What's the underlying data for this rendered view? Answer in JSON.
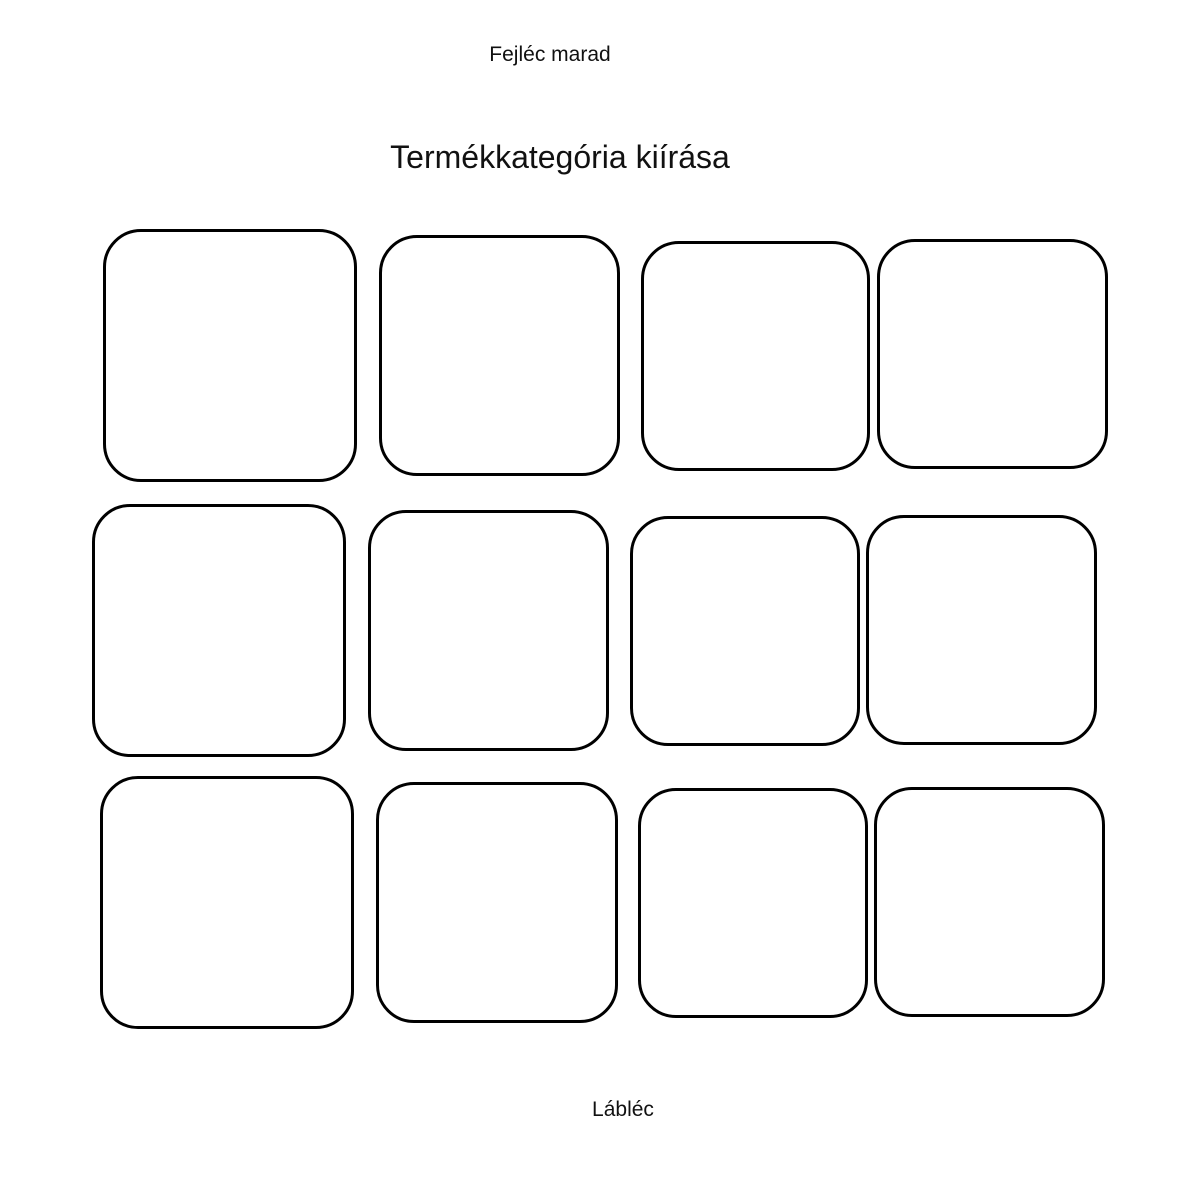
{
  "header": {
    "text": "Fejléc marad"
  },
  "main": {
    "title": "Termékkategória kiírása",
    "grid": {
      "rows": 3,
      "columns": 4,
      "cards": [
        {
          "row": 1,
          "col": 1
        },
        {
          "row": 1,
          "col": 2
        },
        {
          "row": 1,
          "col": 3
        },
        {
          "row": 1,
          "col": 4
        },
        {
          "row": 2,
          "col": 1
        },
        {
          "row": 2,
          "col": 2
        },
        {
          "row": 2,
          "col": 3
        },
        {
          "row": 2,
          "col": 4
        },
        {
          "row": 3,
          "col": 1
        },
        {
          "row": 3,
          "col": 2
        },
        {
          "row": 3,
          "col": 3
        },
        {
          "row": 3,
          "col": 4
        }
      ]
    }
  },
  "footer": {
    "text": "Lábléc"
  },
  "colors": {
    "outline": "#000000",
    "background": "#ffffff"
  }
}
